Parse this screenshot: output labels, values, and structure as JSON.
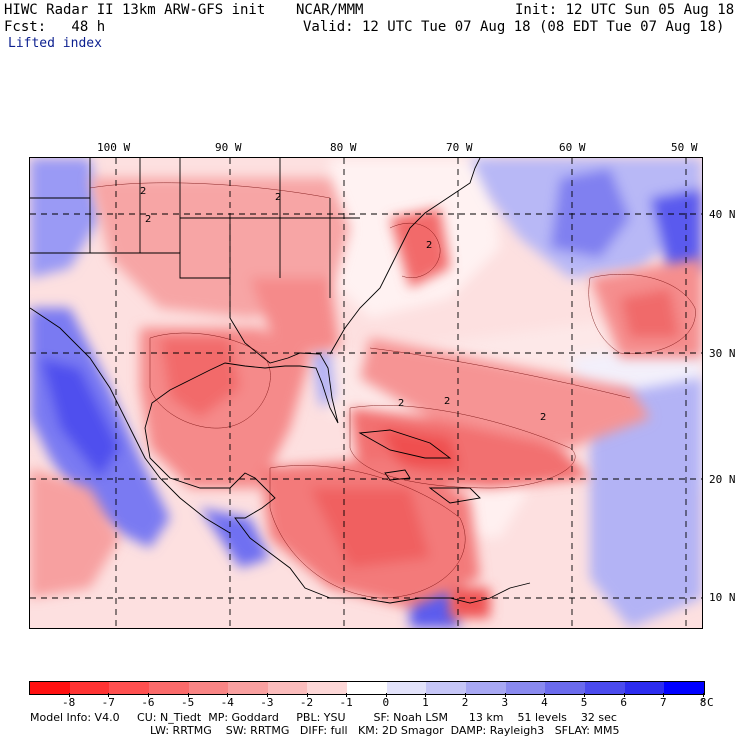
{
  "header": {
    "title": "HIWC Radar II 13km ARW-GFS init",
    "org": "NCAR/MMM",
    "init": "Init: 12 UTC Sun 05 Aug 18",
    "fcst": "Fcst:   48 h",
    "valid": "Valid: 12 UTC Tue 07 Aug 18 (08 EDT Tue 07 Aug 18)",
    "field": "Lifted index"
  },
  "map": {
    "lon_labels": [
      "100 W",
      "90 W",
      "80 W",
      "70 W",
      "60 W",
      "50 W"
    ],
    "lat_labels": [
      "40 N",
      "30 N",
      "20 N",
      "10 N"
    ],
    "contour_labels": [
      "2",
      "2",
      "2",
      "2",
      "2",
      "2",
      "2"
    ]
  },
  "colorbar": {
    "labels": [
      "-8",
      "-7",
      "-6",
      "-5",
      "-4",
      "-3",
      "-2",
      "-1",
      "0",
      "1",
      "2",
      "3",
      "4",
      "5",
      "6",
      "7",
      "8",
      "°C"
    ],
    "colors": [
      "#ff1010",
      "#ff3333",
      "#ff5050",
      "#fb6b6b",
      "#f98585",
      "#f9a0a0",
      "#fbbcbc",
      "#fdd7d7",
      "#ffffff",
      "#e3e3fb",
      "#c6c6f7",
      "#a8a8f3",
      "#8a8aef",
      "#6b6bed",
      "#4b4bee",
      "#2c2cef",
      "#0000ff"
    ]
  },
  "footer": {
    "line1": "Model Info: V4.0     CU: N_Tiedt  MP: Goddard     PBL: YSU        SF: Noah LSM      13 km    51 levels    32 sec",
    "line2": "LW: RRTMG    SW: RRTMG   DIFF: full   KM: 2D Smagor  DAMP: Rayleigh3   SFLAY: MM5"
  }
}
